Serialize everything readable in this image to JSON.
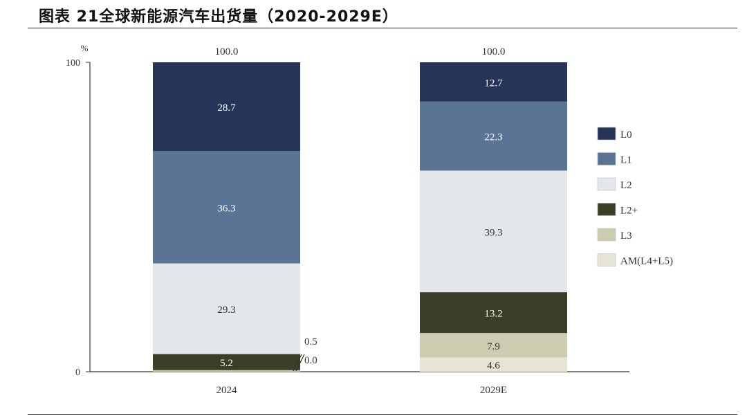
{
  "figure": {
    "title": "图表 21全球新能源汽车出货量（2020-2029E）"
  },
  "chart_data": {
    "type": "bar",
    "stacked": true,
    "title": "图表 21全球新能源汽车出货量（2020-2029E）",
    "ylabel": "%",
    "ylim": [
      0,
      100
    ],
    "yticks": [
      "0",
      "100"
    ],
    "categories": [
      "2024",
      "2029E"
    ],
    "totals": [
      "100.0",
      "100.0"
    ],
    "series": [
      {
        "name": "AM(L4+L5)",
        "color": "#e6e5d3",
        "values": [
          0.0,
          4.6
        ],
        "labels": [
          "0.0",
          "4.6"
        ]
      },
      {
        "name": "L3",
        "color": "#cdcbb0",
        "values": [
          0.5,
          7.9
        ],
        "labels": [
          "0.5",
          "7.9"
        ]
      },
      {
        "name": "L2+",
        "color": "#3c3f28",
        "values": [
          5.2,
          13.2
        ],
        "labels": [
          "5.2",
          "13.2"
        ]
      },
      {
        "name": "L2",
        "color": "#e3e6ea",
        "values": [
          29.3,
          39.3
        ],
        "labels": [
          "29.3",
          "39.3"
        ]
      },
      {
        "name": "L1",
        "color": "#5a7495",
        "values": [
          36.3,
          22.3
        ],
        "labels": [
          "36.3",
          "22.3"
        ]
      },
      {
        "name": "L0",
        "color": "#27345a",
        "values": [
          28.7,
          12.7
        ],
        "labels": [
          "28.7",
          "12.7"
        ]
      }
    ],
    "legend": [
      "L0",
      "L1",
      "L2",
      "L2+",
      "L3",
      "AM(L4+L5)"
    ],
    "legend_position": "right"
  }
}
